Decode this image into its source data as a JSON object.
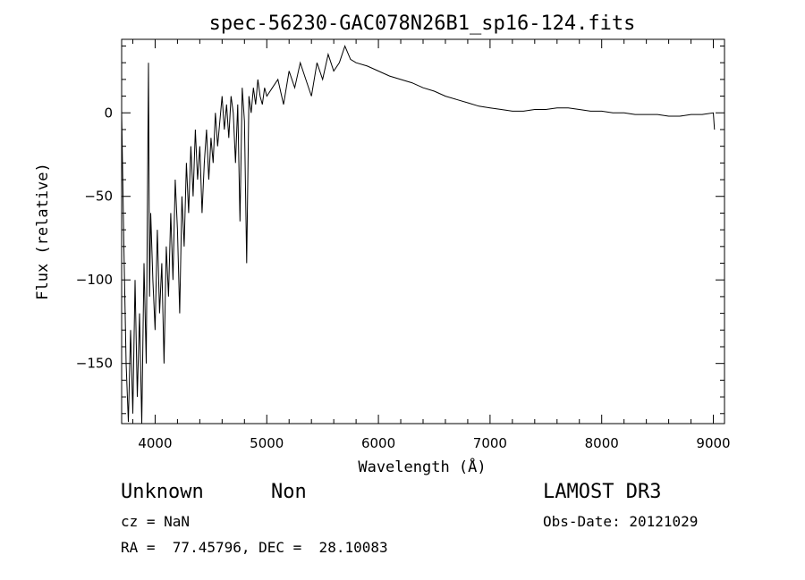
{
  "info": {
    "class": "Unknown",
    "subclass": "Non",
    "cz": "cz = NaN",
    "radec": "RA =  77.45796, DEC =  28.10083",
    "survey": "LAMOST DR3",
    "obsdate": "Obs-Date: 20121029"
  },
  "chart_data": {
    "type": "line",
    "title": "spec-56230-GAC078N26B1_sp16-124.fits",
    "xlabel": "Wavelength (Å)",
    "ylabel": "Flux (relative)",
    "xlim": [
      3700,
      9100
    ],
    "ylim": [
      -186,
      44
    ],
    "xticks": [
      4000,
      5000,
      6000,
      7000,
      8000,
      9000
    ],
    "yticks": [
      0,
      -50,
      -100,
      -150
    ],
    "grid": false,
    "line_color": "#000000",
    "series": [
      {
        "x": [
          3700,
          3720,
          3740,
          3760,
          3780,
          3800,
          3820,
          3840,
          3860,
          3880,
          3900,
          3920,
          3940,
          3950,
          3960,
          3980,
          4000,
          4020,
          4040,
          4060,
          4080,
          4100,
          4120,
          4140,
          4160,
          4180,
          4200,
          4220,
          4240,
          4260,
          4280,
          4300,
          4320,
          4340,
          4360,
          4380,
          4400,
          4420,
          4440,
          4460,
          4480,
          4500,
          4520,
          4540,
          4560,
          4580,
          4600,
          4620,
          4640,
          4660,
          4680,
          4700,
          4720,
          4740,
          4760,
          4780,
          4800,
          4820,
          4840,
          4860,
          4880,
          4900,
          4920,
          4940,
          4960,
          4980,
          5000,
          5050,
          5100,
          5150,
          5200,
          5250,
          5300,
          5350,
          5400,
          5450,
          5500,
          5550,
          5600,
          5650,
          5700,
          5750,
          5800,
          5900,
          6000,
          6100,
          6200,
          6300,
          6400,
          6500,
          6600,
          6700,
          6800,
          6900,
          7000,
          7100,
          7200,
          7300,
          7400,
          7500,
          7600,
          7700,
          7800,
          7900,
          8000,
          8100,
          8200,
          8300,
          8400,
          8500,
          8600,
          8700,
          8800,
          8900,
          9000,
          9010
        ],
        "y": [
          0,
          -80,
          -150,
          -185,
          -130,
          -180,
          -100,
          -170,
          -120,
          -186,
          -90,
          -150,
          30,
          -110,
          -60,
          -100,
          -130,
          -70,
          -120,
          -90,
          -150,
          -80,
          -110,
          -60,
          -100,
          -40,
          -70,
          -120,
          -50,
          -80,
          -30,
          -60,
          -20,
          -50,
          -10,
          -40,
          -20,
          -60,
          -30,
          -10,
          -40,
          -15,
          -30,
          0,
          -20,
          -5,
          10,
          -10,
          5,
          -15,
          10,
          0,
          -30,
          5,
          -65,
          15,
          -5,
          -90,
          10,
          0,
          15,
          5,
          20,
          10,
          5,
          15,
          10,
          15,
          20,
          5,
          25,
          15,
          30,
          20,
          10,
          30,
          20,
          35,
          25,
          30,
          40,
          32,
          30,
          28,
          25,
          22,
          20,
          18,
          15,
          13,
          10,
          8,
          6,
          4,
          3,
          2,
          1,
          1,
          2,
          2,
          3,
          3,
          2,
          1,
          1,
          0,
          0,
          -1,
          -1,
          -1,
          -2,
          -2,
          -1,
          -1,
          0,
          -10
        ]
      }
    ]
  }
}
